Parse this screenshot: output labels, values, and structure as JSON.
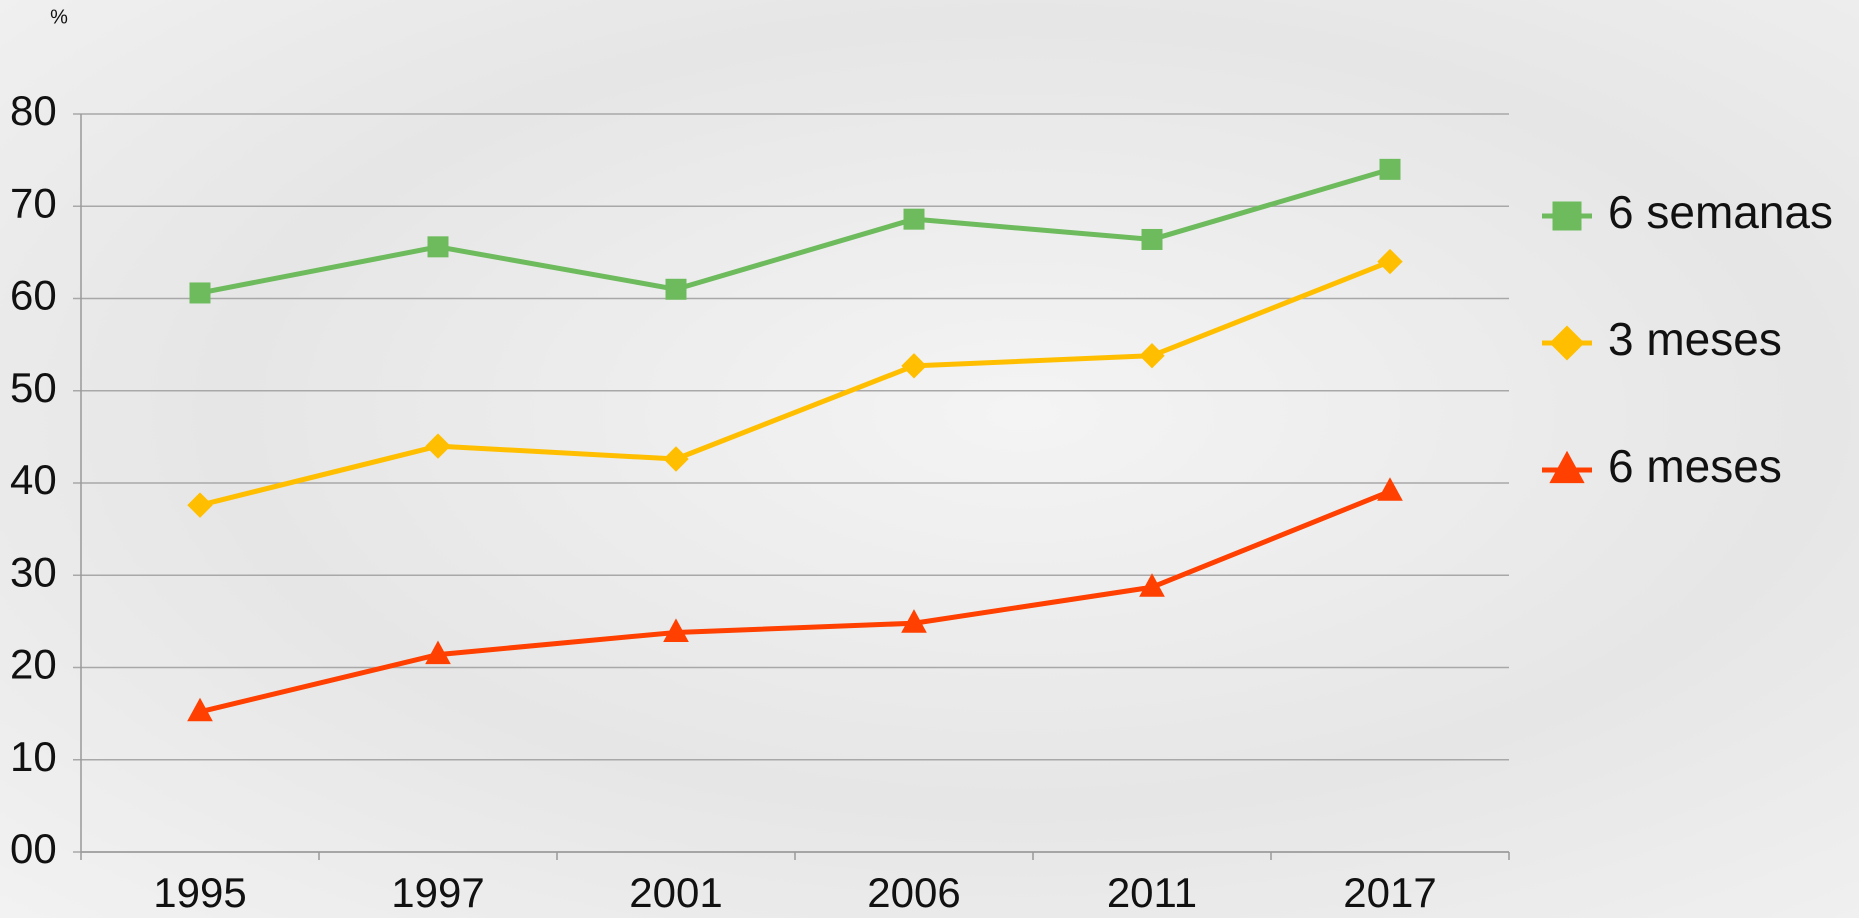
{
  "chart_data": {
    "type": "line",
    "y_label": "%",
    "categories": [
      "1995",
      "1997",
      "2001",
      "2006",
      "2011",
      "2017"
    ],
    "series": [
      {
        "name": "6 semanas",
        "color": "#6dbb5c",
        "marker": "square",
        "values": [
          60.6,
          65.6,
          61.0,
          68.6,
          66.4,
          74.0
        ]
      },
      {
        "name": "3 meses",
        "color": "#ffbf00",
        "marker": "diamond",
        "values": [
          37.6,
          44.0,
          42.6,
          52.7,
          53.8,
          64.0
        ]
      },
      {
        "name": "6 meses",
        "color": "#ff4000",
        "marker": "triangle",
        "values": [
          15.2,
          21.4,
          23.8,
          24.8,
          28.7,
          39.1
        ]
      }
    ],
    "ylim": [
      0,
      80
    ],
    "yticks": [
      {
        "value": 0,
        "label": "00"
      },
      10,
      20,
      30,
      40,
      50,
      60,
      70,
      80
    ],
    "grid": true
  }
}
